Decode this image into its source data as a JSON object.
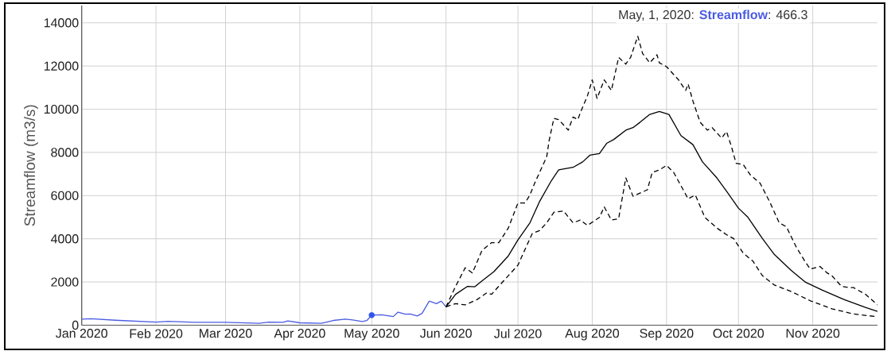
{
  "chart_data": {
    "type": "line",
    "ylabel": "Streamflow (m3/s)",
    "annotations": [
      "May, 1, 2020: **Streamflow**: 466.3"
    ],
    "xlim": [
      "2020-01-01",
      "2020-11-28"
    ],
    "xticks": [
      {
        "value": "2020-01-01",
        "label": "Jan 2020"
      },
      {
        "value": "2020-02-01",
        "label": "Feb 2020"
      },
      {
        "value": "2020-03-01",
        "label": "Mar 2020"
      },
      {
        "value": "2020-04-01",
        "label": "Apr 2020"
      },
      {
        "value": "2020-05-01",
        "label": "May 2020"
      },
      {
        "value": "2020-06-01",
        "label": "Jun 2020"
      },
      {
        "value": "2020-07-01",
        "label": "Jul 2020"
      },
      {
        "value": "2020-08-01",
        "label": "Aug 2020"
      },
      {
        "value": "2020-09-01",
        "label": "Sep 2020"
      },
      {
        "value": "2020-10-01",
        "label": "Oct 2020"
      },
      {
        "value": "2020-11-01",
        "label": "Nov 2020"
      }
    ],
    "ylim": [
      0,
      14800
    ],
    "yticks": [
      0,
      2000,
      4000,
      6000,
      8000,
      10000,
      12000,
      14000
    ],
    "grid": true,
    "series": [
      {
        "color": "#4a5be3",
        "x": [
          "2020-01-01",
          "2020-01-05",
          "2020-01-15",
          "2020-02-01",
          "2020-02-06",
          "2020-02-17",
          "2020-03-01",
          "2020-03-15",
          "2020-03-19",
          "2020-03-25",
          "2020-03-27",
          "2020-04-01",
          "2020-04-10",
          "2020-04-15",
          "2020-04-20",
          "2020-04-23",
          "2020-04-27",
          "2020-04-29",
          "2020-05-01",
          "2020-05-05",
          "2020-05-10",
          "2020-05-12",
          "2020-05-15",
          "2020-05-17",
          "2020-05-20",
          "2020-05-22",
          "2020-05-25",
          "2020-05-28",
          "2020-05-30",
          "2020-06-01"
        ],
        "values": [
          280,
          300,
          230,
          145,
          180,
          135,
          135,
          85,
          145,
          135,
          195,
          110,
          85,
          220,
          280,
          240,
          170,
          220,
          466.3,
          485,
          400,
          605,
          510,
          520,
          425,
          545,
          1115,
          995,
          1115,
          850
        ]
      },
      {
        "color": "#000000",
        "line_style": "solid",
        "x": [
          "2020-06-01",
          "2020-06-05",
          "2020-06-10",
          "2020-06-13",
          "2020-06-16",
          "2020-06-21",
          "2020-06-27",
          "2020-07-01",
          "2020-07-06",
          "2020-07-10",
          "2020-07-15",
          "2020-07-18",
          "2020-07-24",
          "2020-07-28",
          "2020-07-31",
          "2020-08-04",
          "2020-08-07",
          "2020-08-10",
          "2020-08-15",
          "2020-08-18",
          "2020-08-21",
          "2020-08-25",
          "2020-08-29",
          "2020-09-02",
          "2020-09-07",
          "2020-09-12",
          "2020-09-16",
          "2020-09-22",
          "2020-09-26",
          "2020-10-01",
          "2020-10-05",
          "2020-10-11",
          "2020-10-16",
          "2020-10-23",
          "2020-10-29",
          "2020-11-05",
          "2020-11-14",
          "2020-11-23",
          "2020-11-28"
        ],
        "values": [
          850,
          1430,
          1800,
          1780,
          2050,
          2480,
          3210,
          3950,
          4740,
          5720,
          6700,
          7190,
          7310,
          7560,
          7870,
          7950,
          8420,
          8600,
          9030,
          9150,
          9400,
          9760,
          9900,
          9760,
          8780,
          8360,
          7560,
          6820,
          6210,
          5420,
          4990,
          4010,
          3270,
          2540,
          1990,
          1620,
          1190,
          820,
          640
        ]
      },
      {
        "color": "#000000",
        "line_style": "dashed",
        "x": [
          "2020-06-01",
          "2020-06-05",
          "2020-06-09",
          "2020-06-12",
          "2020-06-16",
          "2020-06-20",
          "2020-06-23",
          "2020-06-27",
          "2020-07-01",
          "2020-07-04",
          "2020-07-06",
          "2020-07-08",
          "2020-07-13",
          "2020-07-14",
          "2020-07-16",
          "2020-07-18",
          "2020-07-22",
          "2020-07-24",
          "2020-07-26",
          "2020-07-27",
          "2020-07-30",
          "2020-08-01",
          "2020-08-03",
          "2020-08-06",
          "2020-08-09",
          "2020-08-12",
          "2020-08-15",
          "2020-08-17",
          "2020-08-20",
          "2020-08-22",
          "2020-08-25",
          "2020-08-28",
          "2020-08-29",
          "2020-09-01",
          "2020-09-06",
          "2020-09-09",
          "2020-09-10",
          "2020-09-12",
          "2020-09-15",
          "2020-09-18",
          "2020-09-20",
          "2020-09-24",
          "2020-09-26",
          "2020-09-28",
          "2020-09-30",
          "2020-10-03",
          "2020-10-06",
          "2020-10-10",
          "2020-10-14",
          "2020-10-18",
          "2020-10-21",
          "2020-10-25",
          "2020-10-29",
          "2020-10-31",
          "2020-11-04",
          "2020-11-07",
          "2020-11-09",
          "2020-11-13",
          "2020-11-16",
          "2020-11-18",
          "2020-11-23",
          "2020-11-28"
        ],
        "values": [
          850,
          1800,
          2660,
          2420,
          3460,
          3820,
          3820,
          4500,
          5660,
          5660,
          6030,
          6580,
          7800,
          8540,
          9580,
          9520,
          9030,
          9640,
          9520,
          9830,
          10620,
          11360,
          10500,
          11360,
          10870,
          12400,
          12090,
          12400,
          13380,
          12580,
          12150,
          12520,
          12150,
          11970,
          11360,
          10870,
          11170,
          10380,
          9400,
          9030,
          9150,
          8660,
          8970,
          8300,
          7500,
          7440,
          6950,
          6580,
          5720,
          4740,
          4560,
          3640,
          2910,
          2600,
          2720,
          2420,
          2290,
          1800,
          1740,
          1740,
          1430,
          940
        ]
      },
      {
        "color": "#000000",
        "line_style": "dashed",
        "x": [
          "2020-06-01",
          "2020-06-05",
          "2020-06-09",
          "2020-06-14",
          "2020-06-18",
          "2020-06-20",
          "2020-06-25",
          "2020-07-01",
          "2020-07-04",
          "2020-07-07",
          "2020-07-10",
          "2020-07-13",
          "2020-07-16",
          "2020-07-20",
          "2020-07-24",
          "2020-07-27",
          "2020-07-30",
          "2020-08-04",
          "2020-08-06",
          "2020-08-09",
          "2020-08-12",
          "2020-08-15",
          "2020-08-18",
          "2020-08-24",
          "2020-08-26",
          "2020-08-29",
          "2020-09-01",
          "2020-09-04",
          "2020-09-07",
          "2020-09-10",
          "2020-09-13",
          "2020-09-17",
          "2020-09-22",
          "2020-09-26",
          "2020-09-29",
          "2020-10-03",
          "2020-10-07",
          "2020-10-11",
          "2020-10-16",
          "2020-10-23",
          "2020-10-31",
          "2020-11-09",
          "2020-11-18",
          "2020-11-28"
        ],
        "values": [
          850,
          1000,
          940,
          1190,
          1500,
          1430,
          2050,
          2780,
          3520,
          4250,
          4380,
          4740,
          5230,
          5290,
          4740,
          4870,
          4620,
          4990,
          5480,
          4870,
          4930,
          6820,
          5970,
          6270,
          7070,
          7190,
          7400,
          7070,
          6460,
          5850,
          6030,
          4990,
          4500,
          4190,
          4010,
          3330,
          2970,
          2290,
          1860,
          1560,
          1130,
          760,
          520,
          390
        ]
      },
      {
        "type": "scatter",
        "marker": "circle",
        "color": "#2f55ee",
        "x": [
          "2020-05-01"
        ],
        "values": [
          466.3
        ]
      }
    ]
  }
}
